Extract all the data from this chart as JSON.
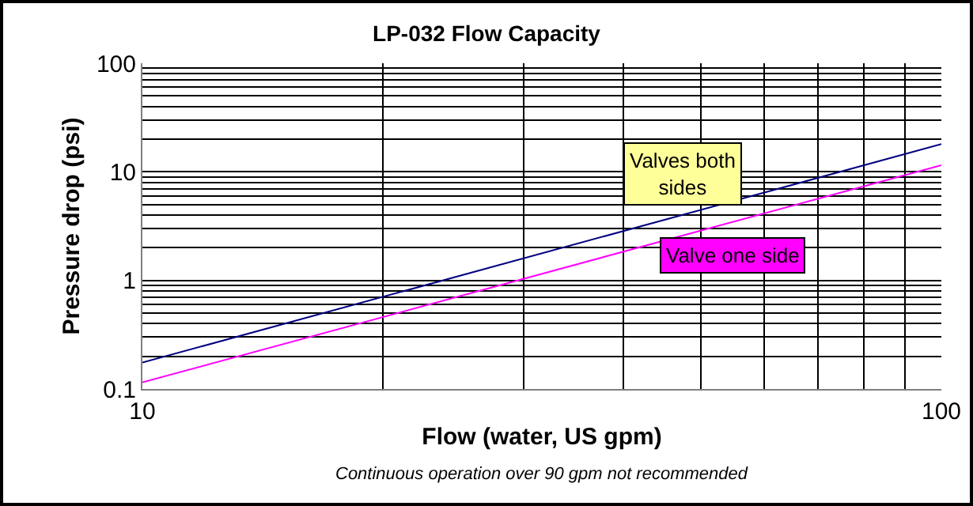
{
  "chart_data": {
    "type": "line",
    "title": "LP-032 Flow Capacity",
    "xlabel": "Flow (water, US gpm)",
    "ylabel": "Pressure drop (psi)",
    "annotations": [
      "Continuous operation over 90 gpm not recommended"
    ],
    "x": [
      10,
      100
    ],
    "series": [
      {
        "name": "Valves both sides",
        "color": "#000080",
        "values": [
          0.175,
          18
        ]
      },
      {
        "name": "Valve one side",
        "color": "#ff00ff",
        "values": [
          0.115,
          11.5
        ]
      }
    ],
    "log": "xy",
    "grid": true,
    "legend": false,
    "marker": "none",
    "line_style": "solid",
    "xlim": [
      10,
      100
    ],
    "xticks": [
      10,
      {
        "value": 20,
        "label": null
      },
      {
        "value": 30,
        "label": null
      },
      {
        "value": 40,
        "label": null
      },
      {
        "value": 50,
        "label": null
      },
      {
        "value": 60,
        "label": null
      },
      {
        "value": 70,
        "label": null
      },
      {
        "value": 80,
        "label": null
      },
      {
        "value": 90,
        "label": null
      },
      100
    ],
    "ylim": [
      0.1,
      100
    ],
    "yticks": [
      0.1,
      {
        "value": 0.2,
        "label": null
      },
      {
        "value": 0.3,
        "label": null
      },
      {
        "value": 0.4,
        "label": null
      },
      {
        "value": 0.5,
        "label": null
      },
      {
        "value": 0.6,
        "label": null
      },
      {
        "value": 0.7,
        "label": null
      },
      {
        "value": 0.8,
        "label": null
      },
      {
        "value": 0.9,
        "label": null
      },
      1,
      {
        "value": 2,
        "label": null
      },
      {
        "value": 3,
        "label": null
      },
      {
        "value": 4,
        "label": null
      },
      {
        "value": 5,
        "label": null
      },
      {
        "value": 6,
        "label": null
      },
      {
        "value": 7,
        "label": null
      },
      {
        "value": 8,
        "label": null
      },
      {
        "value": 9,
        "label": null
      },
      10,
      {
        "value": 20,
        "label": null
      },
      {
        "value": 30,
        "label": null
      },
      {
        "value": 40,
        "label": null
      },
      {
        "value": 50,
        "label": null
      },
      {
        "value": 60,
        "label": null
      },
      {
        "value": 70,
        "label": null
      },
      {
        "value": 80,
        "label": null
      },
      {
        "value": 90,
        "label": null
      },
      100
    ]
  }
}
